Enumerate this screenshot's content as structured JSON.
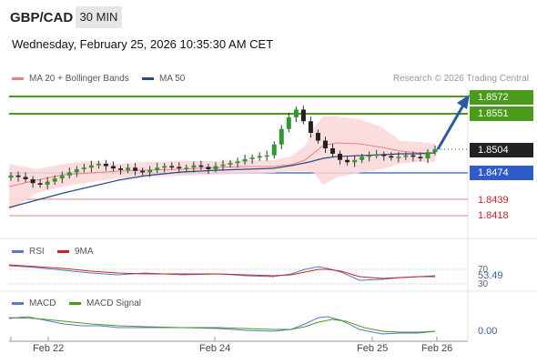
{
  "header": {
    "symbol": "GBP/CAD",
    "timeframe": "30 MIN",
    "datetime": "Wednesday, February 25, 2026 10:35:30 AM CET"
  },
  "legend": {
    "ma20_bollinger": "MA 20 + Bollinger Bands",
    "ma50": "MA 50",
    "research": "Research © 2026 Trading Central",
    "colors": {
      "ma20": "#f08080",
      "ma50": "#2a4a8a",
      "bollinger_fill": "#fbd7d7"
    }
  },
  "levels": {
    "resistance": [
      {
        "value": "1.8572",
        "color": "#4a9a1c"
      },
      {
        "value": "1.8551",
        "color": "#4a9a1c"
      }
    ],
    "current": {
      "value": "1.8504",
      "color": "#222222"
    },
    "pivot": {
      "value": "1.8474",
      "color": "#2f5cc9"
    },
    "support": [
      {
        "value": "1.8439",
        "color": "#cc2222"
      },
      {
        "value": "1.8418",
        "color": "#cc2222"
      }
    ]
  },
  "rsi": {
    "label": "RSI",
    "ma_label": "9MA",
    "value": "53.49",
    "tick_70": "70",
    "tick_30": "30",
    "colors": {
      "rsi": "#5577cc",
      "ma": "#cc2222"
    }
  },
  "macd": {
    "label": "MACD",
    "signal_label": "MACD Signal",
    "value": "0.00",
    "colors": {
      "macd": "#5577cc",
      "signal": "#4a9a1c"
    }
  },
  "xaxis": {
    "labels": [
      "Feb 22",
      "Feb 24",
      "Feb 25",
      "Feb 26"
    ]
  },
  "chart_data": {
    "type": "candlestick",
    "pair": "GBP/CAD",
    "timeframe": "30 MIN",
    "price_axis": [
      "1.8572",
      "1.8551",
      "1.8504",
      "1.8474",
      "1.8439",
      "1.8418"
    ],
    "x_labels": [
      "Feb 22",
      "Feb 24",
      "Feb 25",
      "Feb 26"
    ],
    "close_series": [
      1.847,
      1.8468,
      1.8465,
      1.846,
      1.8458,
      1.8462,
      1.8466,
      1.847,
      1.8474,
      1.8478,
      1.848,
      1.8483,
      1.8485,
      1.8482,
      1.8479,
      1.8477,
      1.848,
      1.8476,
      1.8474,
      1.8477,
      1.848,
      1.8482,
      1.8481,
      1.8479,
      1.848,
      1.8483,
      1.8481,
      1.8478,
      1.8482,
      1.8484,
      1.8486,
      1.8488,
      1.8491,
      1.8493,
      1.8495,
      1.8496,
      1.851,
      1.853,
      1.8545,
      1.8555,
      1.854,
      1.8525,
      1.8515,
      1.8505,
      1.8498,
      1.849,
      1.8487,
      1.849,
      1.8494,
      1.8496,
      1.8497,
      1.8495,
      1.8493,
      1.8494,
      1.8496,
      1.8494,
      1.8492,
      1.85,
      1.8504
    ],
    "rsi_value": 53.49,
    "macd_value": 0.0
  }
}
